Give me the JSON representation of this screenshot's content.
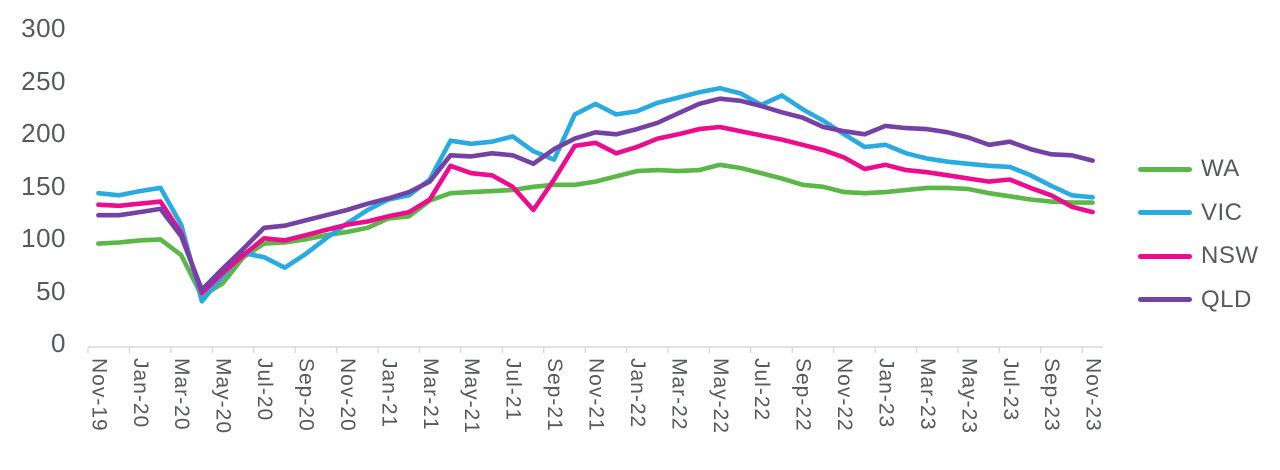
{
  "chart_data": {
    "type": "line",
    "title": "",
    "xlabel": "",
    "ylabel": "",
    "ylim": [
      0,
      300
    ],
    "y_ticks": [
      300,
      250,
      200,
      150,
      100,
      50,
      0
    ],
    "x_tick_label_every": 2,
    "grid": false,
    "legend_position": "right",
    "x": [
      "Nov-19",
      "Dec-19",
      "Jan-20",
      "Feb-20",
      "Mar-20",
      "Apr-20",
      "May-20",
      "Jun-20",
      "Jul-20",
      "Aug-20",
      "Sep-20",
      "Oct-20",
      "Nov-20",
      "Dec-20",
      "Jan-21",
      "Feb-21",
      "Mar-21",
      "Apr-21",
      "May-21",
      "Jun-21",
      "Jul-21",
      "Aug-21",
      "Sep-21",
      "Oct-21",
      "Nov-21",
      "Dec-21",
      "Jan-22",
      "Feb-22",
      "Mar-22",
      "Apr-22",
      "May-22",
      "Jun-22",
      "Jul-22",
      "Aug-22",
      "Sep-22",
      "Oct-22",
      "Nov-22",
      "Dec-22",
      "Jan-23",
      "Feb-23",
      "Mar-23",
      "Apr-23",
      "May-23",
      "Jun-23",
      "Jul-23",
      "Aug-23",
      "Sep-23",
      "Oct-23",
      "Nov-23"
    ],
    "series": [
      {
        "name": "WA",
        "color": "#5bb747",
        "values": [
          95,
          96,
          98,
          99,
          84,
          45,
          57,
          82,
          95,
          96,
          99,
          103,
          106,
          110,
          119,
          121,
          136,
          143,
          144,
          145,
          146,
          149,
          151,
          151,
          154,
          159,
          164,
          165,
          164,
          165,
          170,
          167,
          162,
          157,
          151,
          149,
          144,
          143,
          144,
          146,
          148,
          148,
          147,
          143,
          140,
          137,
          135,
          134,
          134
        ]
      },
      {
        "name": "VIC",
        "color": "#29abe2",
        "values": [
          143,
          141,
          145,
          148,
          113,
          40,
          64,
          86,
          82,
          72,
          85,
          100,
          114,
          127,
          137,
          141,
          156,
          193,
          190,
          192,
          197,
          183,
          175,
          218,
          228,
          218,
          221,
          229,
          234,
          239,
          243,
          238,
          227,
          236,
          223,
          212,
          199,
          187,
          189,
          181,
          176,
          173,
          171,
          169,
          168,
          160,
          150,
          141,
          139
        ]
      },
      {
        "name": "NSW",
        "color": "#ec0c8d",
        "values": [
          132,
          131,
          133,
          135,
          105,
          48,
          67,
          84,
          100,
          98,
          103,
          108,
          113,
          116,
          121,
          125,
          137,
          169,
          162,
          160,
          149,
          127,
          156,
          188,
          191,
          181,
          187,
          195,
          199,
          204,
          206,
          202,
          198,
          194,
          189,
          184,
          177,
          166,
          170,
          165,
          163,
          160,
          157,
          154,
          156,
          148,
          141,
          130,
          125
        ]
      },
      {
        "name": "QLD",
        "color": "#7441a5",
        "values": [
          122,
          122,
          125,
          128,
          102,
          51,
          71,
          90,
          110,
          112,
          117,
          122,
          127,
          133,
          138,
          144,
          154,
          179,
          178,
          181,
          179,
          171,
          185,
          195,
          201,
          199,
          204,
          210,
          219,
          228,
          233,
          231,
          226,
          220,
          215,
          206,
          202,
          199,
          207,
          205,
          204,
          201,
          196,
          189,
          192,
          185,
          180,
          179,
          174
        ]
      }
    ]
  },
  "styles": {
    "axis_line_color": "#d9d9d9",
    "tick_color": "#d9d9d9",
    "label_color": "#58595b",
    "background": "#ffffff"
  },
  "legend": {
    "items": [
      {
        "label": "WA"
      },
      {
        "label": "VIC"
      },
      {
        "label": "NSW"
      },
      {
        "label": "QLD"
      }
    ]
  }
}
